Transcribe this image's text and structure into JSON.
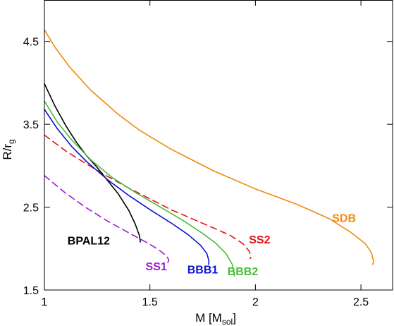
{
  "chart_data": {
    "type": "line",
    "xlabel": "M [M",
    "xlabel_sub": "sol",
    "xlabel_end": "]",
    "ylabel": "R/r",
    "ylabel_sub": "g",
    "xlim": [
      1.0,
      2.65
    ],
    "ylim": [
      1.5,
      5.0
    ],
    "xticks": [
      1,
      1.5,
      2,
      2.5
    ],
    "xtick_labels": [
      "1",
      "1.5",
      "2",
      "2.5"
    ],
    "yticks": [
      1.5,
      2.5,
      3.5,
      4.5
    ],
    "ytick_labels": [
      "1.5",
      "2.5",
      "3.5",
      "4.5"
    ],
    "series": [
      {
        "name": "SDB",
        "color": "#f08a0f",
        "dash": "solid",
        "points": [
          [
            1.0,
            4.64
          ],
          [
            1.05,
            4.43
          ],
          [
            1.12,
            4.19
          ],
          [
            1.22,
            3.91
          ],
          [
            1.35,
            3.62
          ],
          [
            1.45,
            3.43
          ],
          [
            1.6,
            3.2
          ],
          [
            1.8,
            2.94
          ],
          [
            2.0,
            2.72
          ],
          [
            2.2,
            2.53
          ],
          [
            2.35,
            2.36
          ],
          [
            2.45,
            2.2
          ],
          [
            2.52,
            2.06
          ],
          [
            2.55,
            1.95
          ],
          [
            2.56,
            1.84
          ],
          [
            2.555,
            1.81
          ]
        ],
        "label_at": [
          2.42,
          2.32
        ]
      },
      {
        "name": "SS2",
        "color": "#e01414",
        "dash": "dashed",
        "points": [
          [
            1.0,
            3.37
          ],
          [
            1.1,
            3.18
          ],
          [
            1.2,
            3.02
          ],
          [
            1.3,
            2.87
          ],
          [
            1.4,
            2.73
          ],
          [
            1.5,
            2.6
          ],
          [
            1.6,
            2.47
          ],
          [
            1.7,
            2.36
          ],
          [
            1.8,
            2.25
          ],
          [
            1.88,
            2.16
          ],
          [
            1.94,
            2.06
          ],
          [
            1.97,
            1.97
          ],
          [
            1.98,
            1.9
          ],
          [
            1.975,
            1.88
          ]
        ],
        "label_at": [
          2.02,
          2.06
        ]
      },
      {
        "name": "BPAL12",
        "color": "#000000",
        "dash": "solid",
        "points": [
          [
            1.0,
            3.99
          ],
          [
            1.05,
            3.72
          ],
          [
            1.1,
            3.49
          ],
          [
            1.15,
            3.29
          ],
          [
            1.2,
            3.12
          ],
          [
            1.25,
            2.98
          ],
          [
            1.3,
            2.82
          ],
          [
            1.35,
            2.66
          ],
          [
            1.4,
            2.46
          ],
          [
            1.43,
            2.3
          ],
          [
            1.45,
            2.16
          ],
          [
            1.455,
            2.08
          ]
        ],
        "label_at": [
          1.21,
          2.05
        ]
      },
      {
        "name": "BBB1",
        "color": "#0a14d2",
        "dash": "solid",
        "points": [
          [
            1.0,
            3.68
          ],
          [
            1.06,
            3.45
          ],
          [
            1.13,
            3.23
          ],
          [
            1.2,
            3.05
          ],
          [
            1.3,
            2.83
          ],
          [
            1.4,
            2.64
          ],
          [
            1.5,
            2.47
          ],
          [
            1.6,
            2.31
          ],
          [
            1.68,
            2.17
          ],
          [
            1.74,
            2.04
          ],
          [
            1.77,
            1.94
          ],
          [
            1.78,
            1.85
          ],
          [
            1.778,
            1.81
          ]
        ],
        "label_at": [
          1.75,
          1.7
        ]
      },
      {
        "name": "BBB2",
        "color": "#4dbb3c",
        "dash": "solid",
        "points": [
          [
            1.0,
            3.78
          ],
          [
            1.06,
            3.53
          ],
          [
            1.13,
            3.31
          ],
          [
            1.22,
            3.07
          ],
          [
            1.32,
            2.86
          ],
          [
            1.43,
            2.68
          ],
          [
            1.55,
            2.5
          ],
          [
            1.65,
            2.35
          ],
          [
            1.74,
            2.2
          ],
          [
            1.81,
            2.07
          ],
          [
            1.86,
            1.94
          ],
          [
            1.89,
            1.81
          ],
          [
            1.9,
            1.7
          ],
          [
            1.9,
            1.67
          ]
        ],
        "label_at": [
          1.94,
          1.68
        ]
      },
      {
        "name": "SS1",
        "color": "#9b1dd0",
        "dash": "dashed",
        "points": [
          [
            1.0,
            2.88
          ],
          [
            1.1,
            2.67
          ],
          [
            1.2,
            2.49
          ],
          [
            1.3,
            2.33
          ],
          [
            1.4,
            2.19
          ],
          [
            1.48,
            2.08
          ],
          [
            1.54,
            1.99
          ],
          [
            1.58,
            1.91
          ],
          [
            1.59,
            1.86
          ],
          [
            1.585,
            1.83
          ]
        ],
        "label_at": [
          1.53,
          1.74
        ]
      }
    ]
  }
}
